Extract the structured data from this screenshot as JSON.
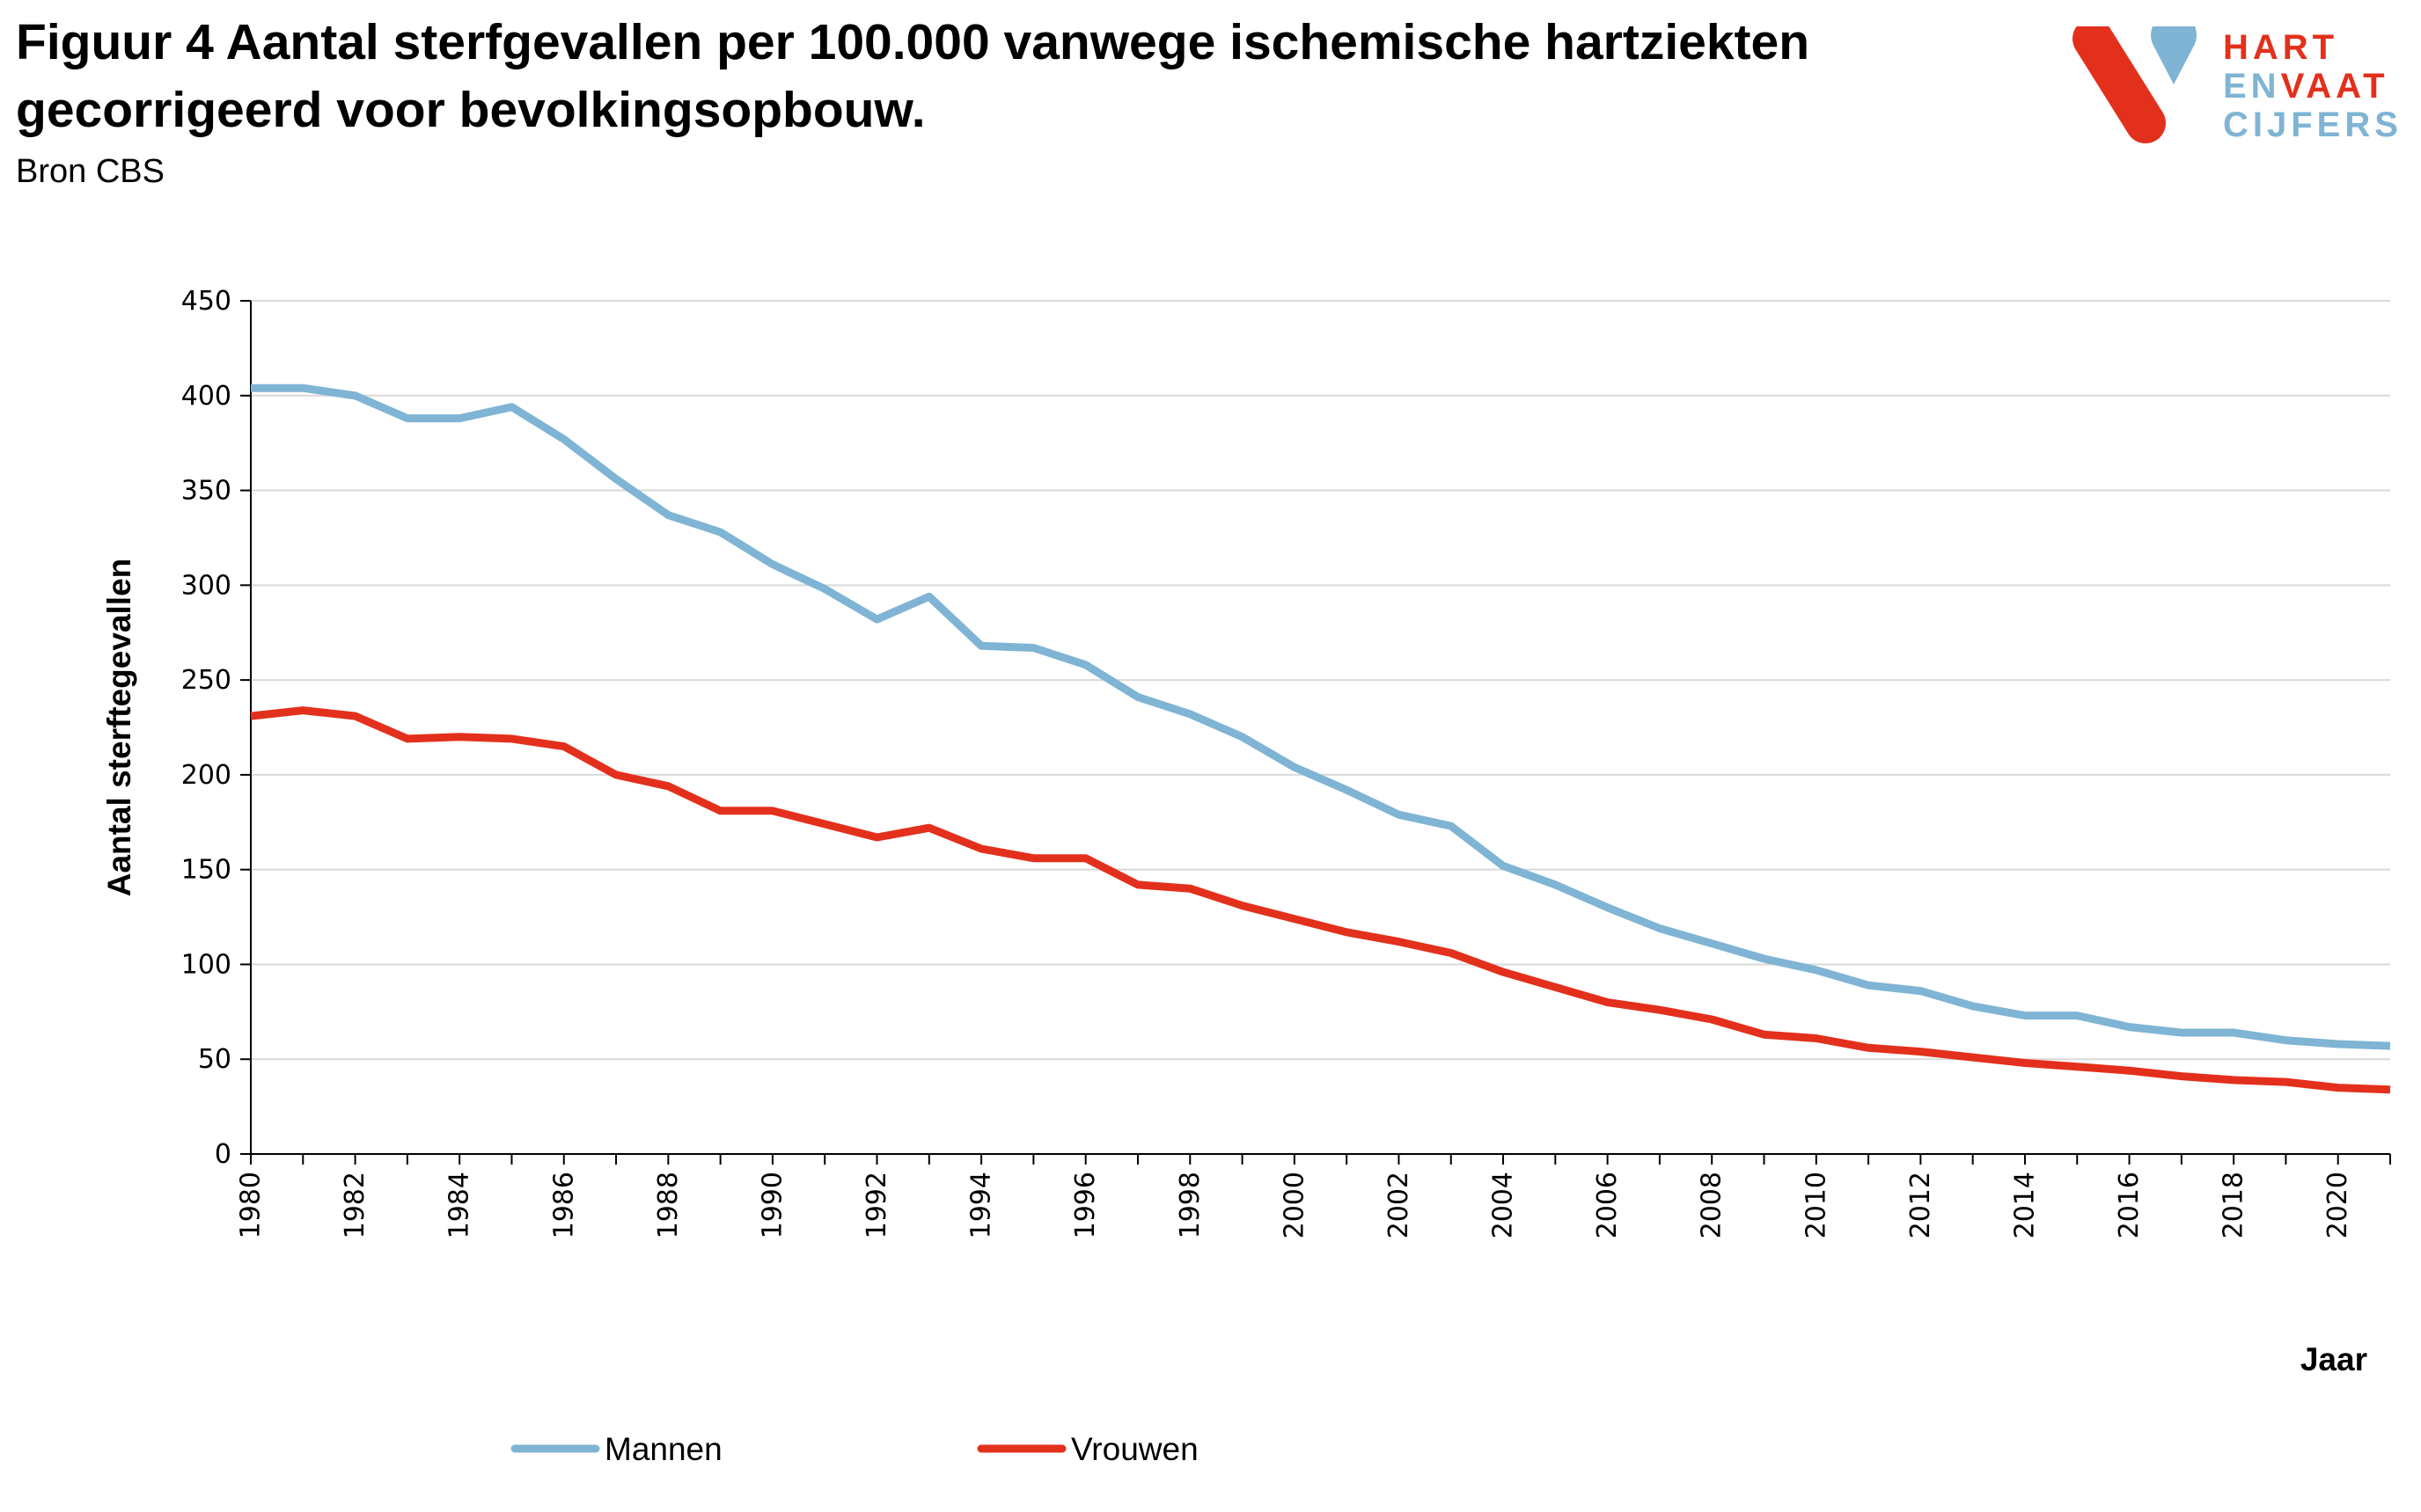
{
  "header": {
    "title_line1": "Figuur 4 Aantal sterfgevallen per 100.000 vanwege ischemische hartziekten",
    "title_line2": "gecorrigeerd voor bevolkingsopbouw.",
    "source": "Bron CBS"
  },
  "logo": {
    "word1": "HART",
    "word2_part1": "EN",
    "word2_part2": "VAAT",
    "word3": "CIJFERS",
    "colors": {
      "red": "#E3301C",
      "blue": "#7FB4D4"
    }
  },
  "chart_data": {
    "type": "line",
    "xlabel": "Jaar",
    "ylabel": "Aantal sterftegevallen",
    "ylim": [
      0,
      450
    ],
    "yticks": [
      0,
      50,
      100,
      150,
      200,
      250,
      300,
      350,
      400,
      450
    ],
    "xtick_labels": [
      "1980",
      "1982",
      "1984",
      "1986",
      "1988",
      "1990",
      "1992",
      "1994",
      "1996",
      "1998",
      "2000",
      "2002",
      "2004",
      "2006",
      "2008",
      "2010",
      "2012",
      "2014",
      "2016",
      "2018",
      "2020"
    ],
    "grid": "horizontal",
    "legend_position": "bottom",
    "x": [
      1980,
      1981,
      1982,
      1983,
      1984,
      1985,
      1986,
      1987,
      1988,
      1989,
      1990,
      1991,
      1992,
      1993,
      1994,
      1995,
      1996,
      1997,
      1998,
      1999,
      2000,
      2001,
      2002,
      2003,
      2004,
      2005,
      2006,
      2007,
      2008,
      2009,
      2010,
      2011,
      2012,
      2013,
      2014,
      2015,
      2016,
      2017,
      2018,
      2019,
      2020,
      2021
    ],
    "series": [
      {
        "name": "Mannen",
        "color": "#7FB4D4",
        "values": [
          404,
          404,
          400,
          388,
          388,
          394,
          377,
          356,
          337,
          328,
          311,
          298,
          282,
          294,
          268,
          267,
          258,
          241,
          232,
          220,
          204,
          192,
          179,
          173,
          152,
          142,
          130,
          119,
          111,
          103,
          97,
          89,
          86,
          78,
          73,
          73,
          67,
          64,
          64,
          60,
          58,
          57
        ]
      },
      {
        "name": "Vrouwen",
        "color": "#E3301C",
        "values": [
          231,
          234,
          231,
          219,
          220,
          219,
          215,
          200,
          194,
          181,
          181,
          174,
          167,
          172,
          161,
          156,
          156,
          142,
          140,
          131,
          124,
          117,
          112,
          106,
          96,
          88,
          80,
          76,
          71,
          63,
          61,
          56,
          54,
          51,
          48,
          46,
          44,
          41,
          39,
          38,
          35,
          34
        ]
      }
    ]
  }
}
